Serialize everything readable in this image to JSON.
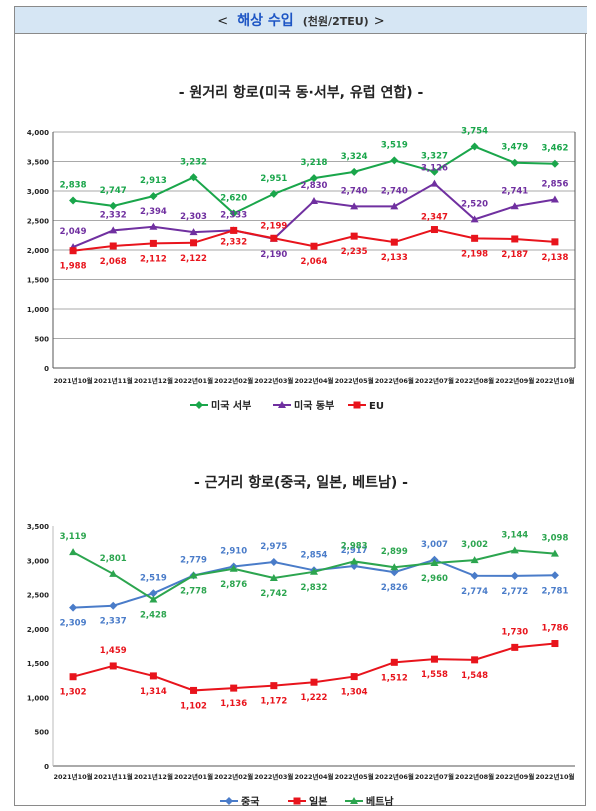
{
  "header": {
    "left_bracket": "<",
    "title": "해상 수입",
    "unit": "(천원/2TEU)",
    "right_bracket": ">"
  },
  "chart_data": [
    {
      "type": "line",
      "title": "- 원거리 항로(미국 동·서부, 유럽 연합) -",
      "categories": [
        "2021년10월",
        "2021년11월",
        "2021년12월",
        "2022년01월",
        "2022년02월",
        "2022년03월",
        "2022년04월",
        "2022년05월",
        "2022년06월",
        "2022년07월",
        "2022년08월",
        "2022년09월",
        "2022년10월"
      ],
      "ylim": [
        0,
        4000
      ],
      "yticks": [
        "0",
        "500",
        "1,000",
        "1,500",
        "2,000",
        "2,500",
        "3,000",
        "3,500",
        "4,000"
      ],
      "grid": true,
      "legend_position": "bottom",
      "series": [
        {
          "name": "미국 서부",
          "color": "#1aa64b",
          "marker": "diamond",
          "values": [
            2838,
            2747,
            2913,
            3232,
            2620,
            2951,
            3218,
            3324,
            3519,
            3327,
            3754,
            3479,
            3462
          ],
          "labels": [
            "2,838",
            "2,747",
            "2,913",
            "3,232",
            "2,620",
            "2,951",
            "3,218",
            "3,324",
            "3,519",
            "3,327",
            "3,754",
            "3,479",
            "3,462"
          ]
        },
        {
          "name": "미국 동부",
          "color": "#7030a0",
          "marker": "triangle",
          "values": [
            2049,
            2332,
            2394,
            2303,
            2333,
            2190,
            2830,
            2740,
            2740,
            3126,
            2520,
            2741,
            2856
          ],
          "labels": [
            "2,049",
            "2,332",
            "2,394",
            "2,303",
            "2,333",
            "2,190",
            "2,830",
            "2,740",
            "2,740",
            "3,126",
            "2,520",
            "2,741",
            "2,856"
          ]
        },
        {
          "name": "EU",
          "color": "#e8141c",
          "marker": "square",
          "values": [
            1988,
            2068,
            2112,
            2122,
            2332,
            2199,
            2064,
            2235,
            2133,
            2347,
            2198,
            2187,
            2138
          ],
          "labels": [
            "1,988",
            "2,068",
            "2,112",
            "2,122",
            "2,332",
            "2,199",
            "2,064",
            "2,235",
            "2,133",
            "2,347",
            "2,198",
            "2,187",
            "2,138"
          ]
        }
      ]
    },
    {
      "type": "line",
      "title": "- 근거리 항로(중국, 일본, 베트남) -",
      "categories": [
        "2021년10월",
        "2021년11월",
        "2021년12월",
        "2022년01월",
        "2022년02월",
        "2022년03월",
        "2022년04월",
        "2022년05월",
        "2022년06월",
        "2022년07월",
        "2022년08월",
        "2022년09월",
        "2022년10월"
      ],
      "ylim": [
        0,
        3500
      ],
      "yticks": [
        "0",
        "500",
        "1,000",
        "1,500",
        "2,000",
        "2,500",
        "3,000",
        "3,500"
      ],
      "grid": false,
      "legend_position": "bottom",
      "series": [
        {
          "name": "중국",
          "color": "#4a7cc9",
          "marker": "diamond",
          "values": [
            2309,
            2337,
            2519,
            2779,
            2910,
            2975,
            2854,
            2917,
            2826,
            3007,
            2774,
            2772,
            2781
          ],
          "labels": [
            "2,309",
            "2,337",
            "2,519",
            "2,779",
            "2,910",
            "2,975",
            "2,854",
            "2,917",
            "2,826",
            "3,007",
            "2,774",
            "2,772",
            "2,781"
          ]
        },
        {
          "name": "일본",
          "color": "#e8141c",
          "marker": "square",
          "values": [
            1302,
            1459,
            1314,
            1102,
            1136,
            1172,
            1222,
            1304,
            1512,
            1558,
            1548,
            1730,
            1786
          ],
          "labels": [
            "1,302",
            "1,459",
            "1,314",
            "1,102",
            "1,136",
            "1,172",
            "1,222",
            "1,304",
            "1,512",
            "1,558",
            "1,548",
            "1,730",
            "1,786"
          ]
        },
        {
          "name": "베트남",
          "color": "#2ca54f",
          "marker": "triangle",
          "values": [
            3119,
            2801,
            2428,
            2778,
            2876,
            2742,
            2832,
            2983,
            2899,
            2960,
            3002,
            3144,
            3098
          ],
          "labels": [
            "3,119",
            "2,801",
            "2,428",
            "2,778",
            "2,876",
            "2,742",
            "2,832",
            "2,983",
            "2,899",
            "2,960",
            "3,002",
            "3,144",
            "3,098"
          ]
        }
      ]
    }
  ]
}
